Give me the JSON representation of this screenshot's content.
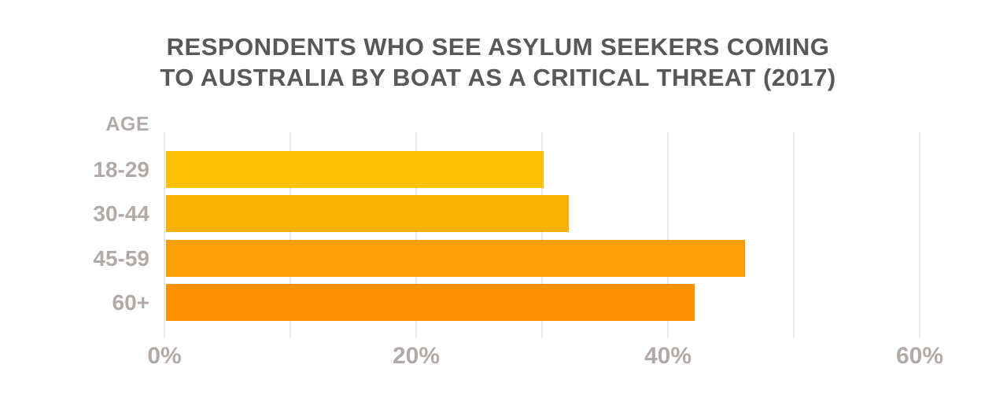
{
  "title": {
    "line1": "RESPONDENTS WHO SEE ASYLUM SEEKERS COMING",
    "line2": "TO AUSTRALIA BY BOAT AS A CRITICAL THREAT (2017)"
  },
  "chart_data": {
    "type": "bar",
    "orientation": "horizontal",
    "title": "Respondents who see asylum seekers coming to Australia by boat as a critical threat (2017)",
    "axis_header": "AGE",
    "categories": [
      "18-29",
      "30-44",
      "45-59",
      "60+"
    ],
    "values": [
      30,
      32,
      46,
      42
    ],
    "unit": "%",
    "bar_colors": [
      "#FEC203",
      "#FDB004",
      "#FC9F05",
      "#FB9002"
    ],
    "x_tick_labels": [
      "0%",
      "20%",
      "40%",
      "60%"
    ],
    "x_tick_values": [
      0,
      20,
      40,
      60
    ],
    "gridline_step": 10,
    "xlim": [
      0,
      64
    ],
    "grid": true,
    "legend": false
  },
  "colors": {
    "title_text": "#57585A",
    "label_text": "#B3AAA7",
    "gridline": "#F0E7E4",
    "background": "#FFFFFF"
  }
}
